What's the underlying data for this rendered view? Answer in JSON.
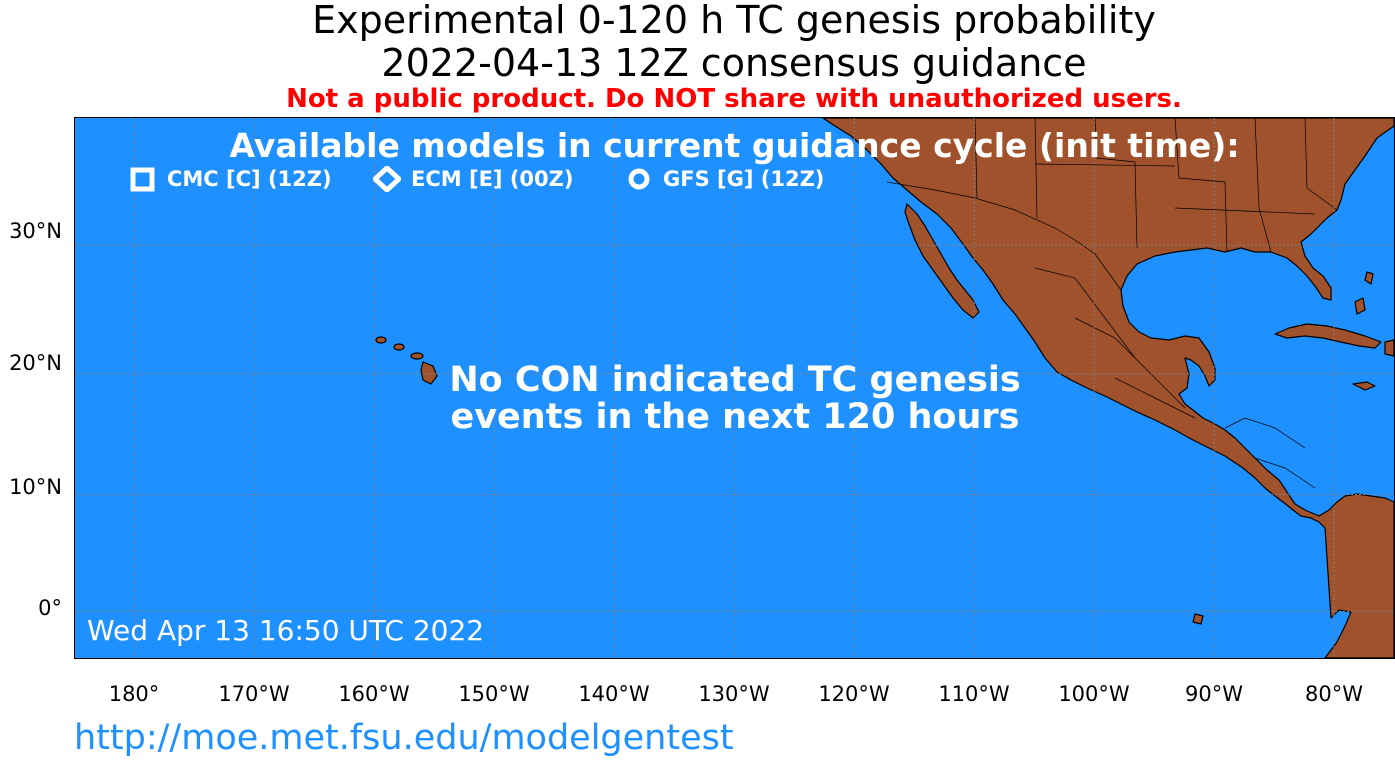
{
  "header": {
    "title_line1": "Experimental 0-120 h TC genesis probability",
    "title_line2": "2022-04-13 12Z consensus guidance",
    "warning": "Not a public product. Do NOT share with unauthorized users."
  },
  "map": {
    "projection": "Mercator",
    "extent": {
      "lon": [
        -185,
        -75
      ],
      "lat": [
        -4,
        39
      ]
    },
    "gridlines": {
      "lon": [
        -180,
        -170,
        -160,
        -150,
        -140,
        -130,
        -120,
        -110,
        -100,
        -90,
        -80
      ],
      "lat": [
        0,
        10,
        20,
        30
      ]
    },
    "colors": {
      "ocean": "#1e90ff",
      "land": "#a0522d",
      "borders": "#000000",
      "grid": "#808080",
      "overlay_text": "#ffffff"
    },
    "lat_labels": [
      "30°N",
      "20°N",
      "10°N",
      "0°"
    ],
    "lon_labels": [
      "180°",
      "170°W",
      "160°W",
      "150°W",
      "140°W",
      "130°W",
      "120°W",
      "110°W",
      "100°W",
      "90°W",
      "80°W"
    ],
    "models_heading": "Available models in current guidance cycle (init time):",
    "legend": [
      {
        "marker": "hollow-square",
        "label": "CMC [C] (12Z)"
      },
      {
        "marker": "hollow-diamond",
        "label": "ECM [E] (00Z)"
      },
      {
        "marker": "hollow-circle",
        "label": "GFS [G] (12Z)"
      }
    ],
    "no_events_line1": "No CON indicated TC genesis",
    "no_events_line2": "events in the next 120 hours",
    "timestamp": "Wed Apr 13 16:50 UTC 2022"
  },
  "footer": {
    "url": "http://moe.met.fsu.edu/modelgentest"
  }
}
